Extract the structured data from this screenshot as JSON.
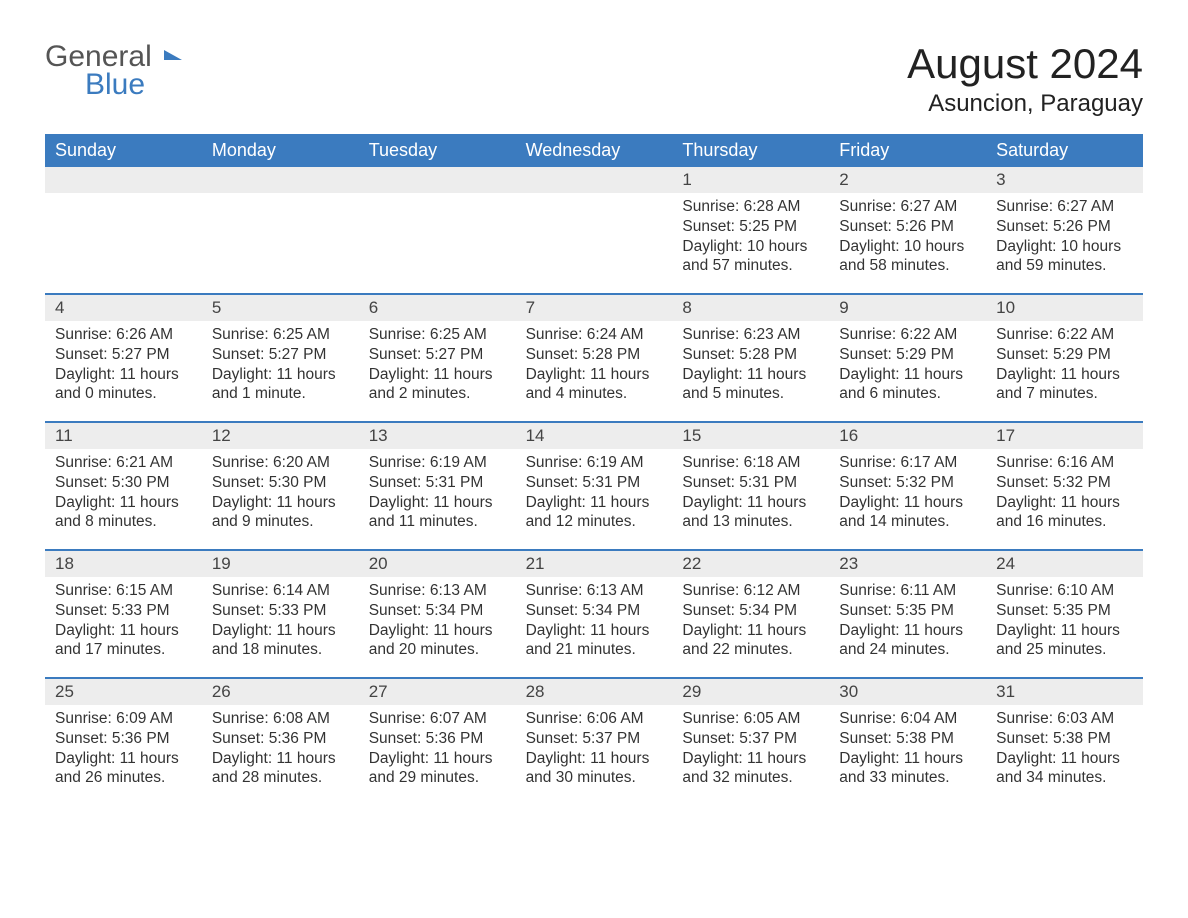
{
  "brand": {
    "text_general": "General",
    "text_blue": "Blue",
    "general_color": "#555555",
    "blue_color": "#3b7bbf",
    "icon_color": "#3b7bbf"
  },
  "header": {
    "month_title": "August 2024",
    "location": "Asuncion, Paraguay",
    "title_fontsize": 42,
    "location_fontsize": 24
  },
  "styling": {
    "background_color": "#ffffff",
    "header_bg": "#3b7bbf",
    "header_text_color": "#ffffff",
    "daynum_bg": "#ededed",
    "week_border_color": "#3b7bbf",
    "body_text_color": "#333333",
    "body_fontsize": 15.5,
    "dayheader_fontsize": 18
  },
  "day_names": [
    "Sunday",
    "Monday",
    "Tuesday",
    "Wednesday",
    "Thursday",
    "Friday",
    "Saturday"
  ],
  "weeks": [
    [
      {
        "empty": true
      },
      {
        "empty": true
      },
      {
        "empty": true
      },
      {
        "empty": true
      },
      {
        "num": "1",
        "sunrise": "Sunrise: 6:28 AM",
        "sunset": "Sunset: 5:25 PM",
        "day1": "Daylight: 10 hours",
        "day2": "and 57 minutes."
      },
      {
        "num": "2",
        "sunrise": "Sunrise: 6:27 AM",
        "sunset": "Sunset: 5:26 PM",
        "day1": "Daylight: 10 hours",
        "day2": "and 58 minutes."
      },
      {
        "num": "3",
        "sunrise": "Sunrise: 6:27 AM",
        "sunset": "Sunset: 5:26 PM",
        "day1": "Daylight: 10 hours",
        "day2": "and 59 minutes."
      }
    ],
    [
      {
        "num": "4",
        "sunrise": "Sunrise: 6:26 AM",
        "sunset": "Sunset: 5:27 PM",
        "day1": "Daylight: 11 hours",
        "day2": "and 0 minutes."
      },
      {
        "num": "5",
        "sunrise": "Sunrise: 6:25 AM",
        "sunset": "Sunset: 5:27 PM",
        "day1": "Daylight: 11 hours",
        "day2": "and 1 minute."
      },
      {
        "num": "6",
        "sunrise": "Sunrise: 6:25 AM",
        "sunset": "Sunset: 5:27 PM",
        "day1": "Daylight: 11 hours",
        "day2": "and 2 minutes."
      },
      {
        "num": "7",
        "sunrise": "Sunrise: 6:24 AM",
        "sunset": "Sunset: 5:28 PM",
        "day1": "Daylight: 11 hours",
        "day2": "and 4 minutes."
      },
      {
        "num": "8",
        "sunrise": "Sunrise: 6:23 AM",
        "sunset": "Sunset: 5:28 PM",
        "day1": "Daylight: 11 hours",
        "day2": "and 5 minutes."
      },
      {
        "num": "9",
        "sunrise": "Sunrise: 6:22 AM",
        "sunset": "Sunset: 5:29 PM",
        "day1": "Daylight: 11 hours",
        "day2": "and 6 minutes."
      },
      {
        "num": "10",
        "sunrise": "Sunrise: 6:22 AM",
        "sunset": "Sunset: 5:29 PM",
        "day1": "Daylight: 11 hours",
        "day2": "and 7 minutes."
      }
    ],
    [
      {
        "num": "11",
        "sunrise": "Sunrise: 6:21 AM",
        "sunset": "Sunset: 5:30 PM",
        "day1": "Daylight: 11 hours",
        "day2": "and 8 minutes."
      },
      {
        "num": "12",
        "sunrise": "Sunrise: 6:20 AM",
        "sunset": "Sunset: 5:30 PM",
        "day1": "Daylight: 11 hours",
        "day2": "and 9 minutes."
      },
      {
        "num": "13",
        "sunrise": "Sunrise: 6:19 AM",
        "sunset": "Sunset: 5:31 PM",
        "day1": "Daylight: 11 hours",
        "day2": "and 11 minutes."
      },
      {
        "num": "14",
        "sunrise": "Sunrise: 6:19 AM",
        "sunset": "Sunset: 5:31 PM",
        "day1": "Daylight: 11 hours",
        "day2": "and 12 minutes."
      },
      {
        "num": "15",
        "sunrise": "Sunrise: 6:18 AM",
        "sunset": "Sunset: 5:31 PM",
        "day1": "Daylight: 11 hours",
        "day2": "and 13 minutes."
      },
      {
        "num": "16",
        "sunrise": "Sunrise: 6:17 AM",
        "sunset": "Sunset: 5:32 PM",
        "day1": "Daylight: 11 hours",
        "day2": "and 14 minutes."
      },
      {
        "num": "17",
        "sunrise": "Sunrise: 6:16 AM",
        "sunset": "Sunset: 5:32 PM",
        "day1": "Daylight: 11 hours",
        "day2": "and 16 minutes."
      }
    ],
    [
      {
        "num": "18",
        "sunrise": "Sunrise: 6:15 AM",
        "sunset": "Sunset: 5:33 PM",
        "day1": "Daylight: 11 hours",
        "day2": "and 17 minutes."
      },
      {
        "num": "19",
        "sunrise": "Sunrise: 6:14 AM",
        "sunset": "Sunset: 5:33 PM",
        "day1": "Daylight: 11 hours",
        "day2": "and 18 minutes."
      },
      {
        "num": "20",
        "sunrise": "Sunrise: 6:13 AM",
        "sunset": "Sunset: 5:34 PM",
        "day1": "Daylight: 11 hours",
        "day2": "and 20 minutes."
      },
      {
        "num": "21",
        "sunrise": "Sunrise: 6:13 AM",
        "sunset": "Sunset: 5:34 PM",
        "day1": "Daylight: 11 hours",
        "day2": "and 21 minutes."
      },
      {
        "num": "22",
        "sunrise": "Sunrise: 6:12 AM",
        "sunset": "Sunset: 5:34 PM",
        "day1": "Daylight: 11 hours",
        "day2": "and 22 minutes."
      },
      {
        "num": "23",
        "sunrise": "Sunrise: 6:11 AM",
        "sunset": "Sunset: 5:35 PM",
        "day1": "Daylight: 11 hours",
        "day2": "and 24 minutes."
      },
      {
        "num": "24",
        "sunrise": "Sunrise: 6:10 AM",
        "sunset": "Sunset: 5:35 PM",
        "day1": "Daylight: 11 hours",
        "day2": "and 25 minutes."
      }
    ],
    [
      {
        "num": "25",
        "sunrise": "Sunrise: 6:09 AM",
        "sunset": "Sunset: 5:36 PM",
        "day1": "Daylight: 11 hours",
        "day2": "and 26 minutes."
      },
      {
        "num": "26",
        "sunrise": "Sunrise: 6:08 AM",
        "sunset": "Sunset: 5:36 PM",
        "day1": "Daylight: 11 hours",
        "day2": "and 28 minutes."
      },
      {
        "num": "27",
        "sunrise": "Sunrise: 6:07 AM",
        "sunset": "Sunset: 5:36 PM",
        "day1": "Daylight: 11 hours",
        "day2": "and 29 minutes."
      },
      {
        "num": "28",
        "sunrise": "Sunrise: 6:06 AM",
        "sunset": "Sunset: 5:37 PM",
        "day1": "Daylight: 11 hours",
        "day2": "and 30 minutes."
      },
      {
        "num": "29",
        "sunrise": "Sunrise: 6:05 AM",
        "sunset": "Sunset: 5:37 PM",
        "day1": "Daylight: 11 hours",
        "day2": "and 32 minutes."
      },
      {
        "num": "30",
        "sunrise": "Sunrise: 6:04 AM",
        "sunset": "Sunset: 5:38 PM",
        "day1": "Daylight: 11 hours",
        "day2": "and 33 minutes."
      },
      {
        "num": "31",
        "sunrise": "Sunrise: 6:03 AM",
        "sunset": "Sunset: 5:38 PM",
        "day1": "Daylight: 11 hours",
        "day2": "and 34 minutes."
      }
    ]
  ]
}
